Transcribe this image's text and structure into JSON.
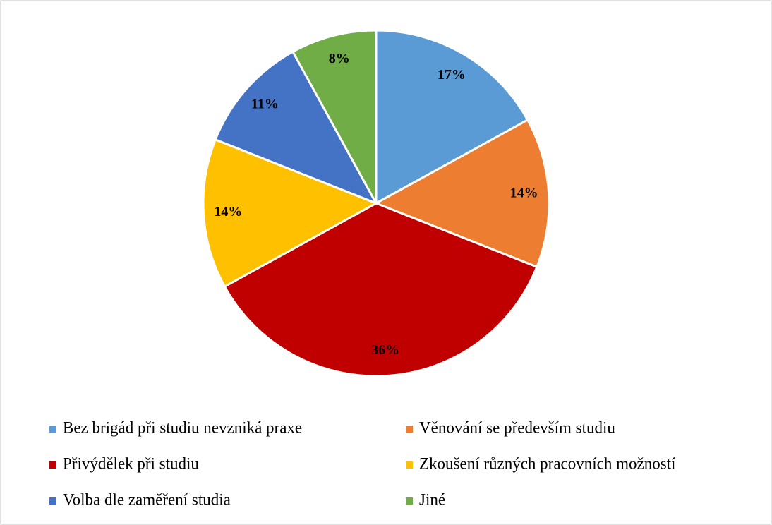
{
  "chart_data": {
    "type": "pie",
    "categories": [
      "Bez brigád při studiu nevzniká praxe",
      "Věnování se především studiu",
      "Přivýdělek při studiu",
      "Zkoušení různých pracovních možností",
      "Volba dle zaměření studia",
      "Jiné"
    ],
    "values": [
      17,
      14,
      36,
      14,
      11,
      8
    ],
    "value_labels": [
      "17%",
      "14%",
      "36%",
      "14%",
      "11%",
      "8%"
    ],
    "colors": [
      "#5b9bd5",
      "#ed7d31",
      "#c00000",
      "#ffc000",
      "#4472c4",
      "#70ad47"
    ],
    "legend": "bottom"
  }
}
